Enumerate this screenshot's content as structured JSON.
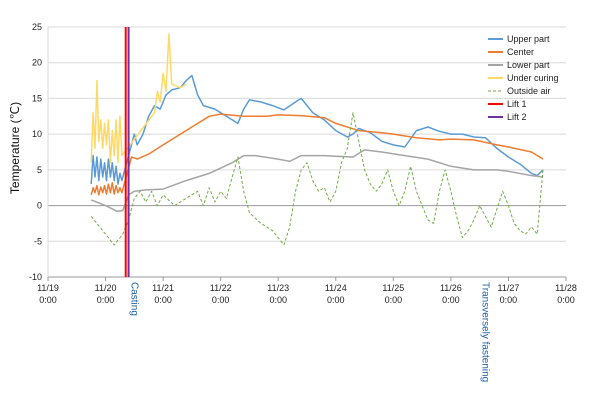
{
  "chart_data": {
    "type": "line",
    "title": "",
    "xlabel": "",
    "ylabel": "Temperature (℃)",
    "x_range": [
      "11/19 0:00",
      "11/28 0:00"
    ],
    "ylim": [
      -10,
      25
    ],
    "y_ticks": [
      -10,
      -5,
      0,
      5,
      10,
      15,
      20,
      25
    ],
    "x_ticks": [
      {
        "x": "11/19 0:00",
        "date": "11/19",
        "time": "0:00"
      },
      {
        "x": "11/20 0:00",
        "date": "11/20",
        "time": "0:00"
      },
      {
        "x": "11/21 0:00",
        "date": "11/21",
        "time": "0:00"
      },
      {
        "x": "11/22 0:00",
        "date": "11/22",
        "time": "0:00"
      },
      {
        "x": "11/23 0:00",
        "date": "11/23",
        "time": "0:00"
      },
      {
        "x": "11/24 0:00",
        "date": "11/24",
        "time": "0:00"
      },
      {
        "x": "11/25 0:00",
        "date": "11/25",
        "time": "0:00"
      },
      {
        "x": "11/26 0:00",
        "date": "11/26",
        "time": "0:00"
      },
      {
        "x": "11/27 0:00",
        "date": "11/27",
        "time": "0:00"
      },
      {
        "x": "11/28 0:00",
        "date": "11/28",
        "time": "0:00"
      }
    ],
    "grid": {
      "horizontal": true,
      "vertical": false
    },
    "legend_position": "top-right",
    "series": [
      {
        "name": "Upper part",
        "color": "#5b9bd5",
        "style": "solid",
        "points": [
          [
            "11/19 18:00",
            3.0
          ],
          [
            "11/19 18:48",
            7.0
          ],
          [
            "11/19 19:36",
            4.0
          ],
          [
            "11/19 20:24",
            6.8
          ],
          [
            "11/19 21:12",
            3.5
          ],
          [
            "11/19 22:00",
            6.5
          ],
          [
            "11/19 22:48",
            4.0
          ],
          [
            "11/19 23:36",
            6.0
          ],
          [
            "11/20 0:24",
            3.5
          ],
          [
            "11/20 1:12",
            6.5
          ],
          [
            "11/20 2:00",
            4.0
          ],
          [
            "11/20 2:48",
            6.0
          ],
          [
            "11/20 3:36",
            3.5
          ],
          [
            "11/20 4:24",
            5.5
          ],
          [
            "11/20 5:12",
            3.0
          ],
          [
            "11/20 6:00",
            4.5
          ],
          [
            "11/20 6:48",
            3.5
          ],
          [
            "11/20 12:00",
            10.0
          ],
          [
            "11/20 13:12",
            8.5
          ],
          [
            "11/20 15:36",
            10.0
          ],
          [
            "11/20 18:00",
            12.5
          ],
          [
            "11/20 20:24",
            14.0
          ],
          [
            "11/20 22:48",
            13.5
          ],
          [
            "11/21 1:12",
            15.5
          ],
          [
            "11/21 3:36",
            16.2
          ],
          [
            "11/21 7:12",
            16.5
          ],
          [
            "11/21 9:36",
            17.5
          ],
          [
            "11/21 12:00",
            18.2
          ],
          [
            "11/21 14:24",
            15.5
          ],
          [
            "11/21 16:48",
            14.0
          ],
          [
            "11/21 21:36",
            13.5
          ],
          [
            "11/22 2:24",
            12.5
          ],
          [
            "11/22 7:12",
            11.5
          ],
          [
            "11/22 9:36",
            13.5
          ],
          [
            "11/22 12:00",
            14.8
          ],
          [
            "11/22 16:48",
            14.5
          ],
          [
            "11/22 21:36",
            14.0
          ],
          [
            "11/23 2:24",
            13.4
          ],
          [
            "11/23 7:12",
            14.5
          ],
          [
            "11/23 9:36",
            15.0
          ],
          [
            "11/23 14:24",
            13.0
          ],
          [
            "11/23 19:12",
            12.0
          ],
          [
            "11/24 0:00",
            10.5
          ],
          [
            "11/24 4:48",
            9.6
          ],
          [
            "11/24 7:12",
            10.0
          ],
          [
            "11/24 9:36",
            10.8
          ],
          [
            "11/24 14:24",
            10.2
          ],
          [
            "11/24 19:12",
            9.0
          ],
          [
            "11/25 0:00",
            8.5
          ],
          [
            "11/25 4:48",
            8.2
          ],
          [
            "11/25 9:36",
            10.5
          ],
          [
            "11/25 14:24",
            11.0
          ],
          [
            "11/25 19:12",
            10.4
          ],
          [
            "11/26 0:00",
            10.0
          ],
          [
            "11/26 4:48",
            10.0
          ],
          [
            "11/26 9:36",
            9.6
          ],
          [
            "11/26 14:24",
            9.5
          ],
          [
            "11/26 19:12",
            8.0
          ],
          [
            "11/27 0:00",
            6.8
          ],
          [
            "11/27 4:48",
            5.8
          ],
          [
            "11/27 9:36",
            4.5
          ],
          [
            "11/27 12:00",
            4.2
          ],
          [
            "11/27 14:24",
            5.0
          ]
        ]
      },
      {
        "name": "Center",
        "color": "#ed7d31",
        "style": "solid",
        "points": [
          [
            "11/19 18:00",
            1.5
          ],
          [
            "11/19 18:48",
            2.5
          ],
          [
            "11/19 19:36",
            1.8
          ],
          [
            "11/19 20:24",
            2.8
          ],
          [
            "11/19 21:12",
            1.5
          ],
          [
            "11/19 22:00",
            2.6
          ],
          [
            "11/19 22:48",
            1.8
          ],
          [
            "11/19 23:36",
            2.8
          ],
          [
            "11/20 0:24",
            1.6
          ],
          [
            "11/20 1:12",
            3.0
          ],
          [
            "11/20 2:00",
            1.8
          ],
          [
            "11/20 2:48",
            3.2
          ],
          [
            "11/20 3:36",
            1.6
          ],
          [
            "11/20 4:24",
            2.8
          ],
          [
            "11/20 5:12",
            1.8
          ],
          [
            "11/20 6:00",
            2.5
          ],
          [
            "11/20 6:48",
            1.8
          ],
          [
            "11/20 10:48",
            6.8
          ],
          [
            "11/20 13:12",
            6.5
          ],
          [
            "11/20 18:00",
            7.2
          ],
          [
            "11/21 0:00",
            8.5
          ],
          [
            "11/21 9:36",
            10.5
          ],
          [
            "11/21 19:12",
            12.5
          ],
          [
            "11/22 0:00",
            12.8
          ],
          [
            "11/22 9:36",
            12.5
          ],
          [
            "11/22 19:12",
            12.5
          ],
          [
            "11/23 0:00",
            12.7
          ],
          [
            "11/23 9:36",
            12.6
          ],
          [
            "11/23 19:12",
            12.3
          ],
          [
            "11/24 0:00",
            11.5
          ],
          [
            "11/24 9:36",
            10.5
          ],
          [
            "11/24 19:12",
            10.2
          ],
          [
            "11/25 0:00",
            10.0
          ],
          [
            "11/25 9:36",
            9.5
          ],
          [
            "11/25 19:12",
            9.2
          ],
          [
            "11/26 0:00",
            9.3
          ],
          [
            "11/26 9:36",
            9.2
          ],
          [
            "11/26 19:12",
            8.5
          ],
          [
            "11/27 0:00",
            8.2
          ],
          [
            "11/27 9:36",
            7.5
          ],
          [
            "11/27 14:24",
            6.5
          ]
        ]
      },
      {
        "name": "Lower part",
        "color": "#a5a5a5",
        "style": "solid",
        "points": [
          [
            "11/19 18:00",
            0.8
          ],
          [
            "11/20 0:00",
            0.0
          ],
          [
            "11/20 4:48",
            -0.8
          ],
          [
            "11/20 7:12",
            -0.7
          ],
          [
            "11/20 9:36",
            1.5
          ],
          [
            "11/20 12:00",
            2.0
          ],
          [
            "11/20 16:48",
            2.2
          ],
          [
            "11/21 0:00",
            2.3
          ],
          [
            "11/21 9:36",
            3.5
          ],
          [
            "11/21 19:12",
            4.5
          ],
          [
            "11/22 4:48",
            6.0
          ],
          [
            "11/22 9:36",
            7.0
          ],
          [
            "11/22 14:24",
            7.0
          ],
          [
            "11/23 0:00",
            6.5
          ],
          [
            "11/23 4:48",
            6.2
          ],
          [
            "11/23 9:36",
            7.0
          ],
          [
            "11/23 19:12",
            7.0
          ],
          [
            "11/24 0:00",
            6.9
          ],
          [
            "11/24 7:12",
            6.8
          ],
          [
            "11/24 12:00",
            7.8
          ],
          [
            "11/24 19:12",
            7.5
          ],
          [
            "11/25 4:48",
            7.0
          ],
          [
            "11/25 14:24",
            6.5
          ],
          [
            "11/26 0:00",
            5.5
          ],
          [
            "11/26 9:36",
            5.0
          ],
          [
            "11/26 19:12",
            5.0
          ],
          [
            "11/27 0:00",
            4.8
          ],
          [
            "11/27 9:36",
            4.2
          ],
          [
            "11/27 14:24",
            4.0
          ]
        ]
      },
      {
        "name": "Under curing",
        "color": "#ffd966",
        "style": "solid",
        "points": [
          [
            "11/19 18:00",
            6.0
          ],
          [
            "11/19 18:48",
            13.0
          ],
          [
            "11/19 19:36",
            8.0
          ],
          [
            "11/19 20:24",
            17.5
          ],
          [
            "11/19 21:12",
            9.0
          ],
          [
            "11/19 22:00",
            12.0
          ],
          [
            "11/19 22:48",
            8.0
          ],
          [
            "11/19 23:36",
            11.5
          ],
          [
            "11/20 0:24",
            8.5
          ],
          [
            "11/20 1:12",
            12.0
          ],
          [
            "11/20 2:00",
            6.0
          ],
          [
            "11/20 2:48",
            10.5
          ],
          [
            "11/20 3:36",
            7.0
          ],
          [
            "11/20 4:24",
            12.0
          ],
          [
            "11/20 5:12",
            6.0
          ],
          [
            "11/20 6:00",
            12.5
          ],
          [
            "11/20 6:48",
            7.0
          ],
          [
            "11/20 20:24",
            13.0
          ],
          [
            "11/20 21:36",
            16.0
          ],
          [
            "11/20 22:48",
            14.5
          ],
          [
            "11/21 0:00",
            18.5
          ],
          [
            "11/21 1:12",
            16.0
          ],
          [
            "11/21 2:24",
            24.0
          ],
          [
            "11/21 3:36",
            17.0
          ],
          [
            "11/21 7:12",
            16.5
          ],
          [
            "11/21 9:36",
            17.0
          ]
        ]
      },
      {
        "name": "Outside air",
        "color": "#70ad47",
        "style": "dashed",
        "points": [
          [
            "11/19 18:00",
            -1.5
          ],
          [
            "11/19 21:36",
            -3.0
          ],
          [
            "11/20 1:12",
            -4.5
          ],
          [
            "11/20 3:36",
            -5.5
          ],
          [
            "11/20 7:12",
            -4.0
          ],
          [
            "11/20 9:36",
            -2.0
          ],
          [
            "11/20 12:00",
            1.0
          ],
          [
            "11/20 14:24",
            2.0
          ],
          [
            "11/20 16:48",
            0.5
          ],
          [
            "11/20 19:12",
            2.0
          ],
          [
            "11/20 21:36",
            0.0
          ],
          [
            "11/21 0:00",
            1.5
          ],
          [
            "11/21 4:48",
            0.0
          ],
          [
            "11/21 9:36",
            1.0
          ],
          [
            "11/21 14:24",
            2.0
          ],
          [
            "11/21 16:48",
            0.0
          ],
          [
            "11/21 19:12",
            2.5
          ],
          [
            "11/21 21:36",
            0.5
          ],
          [
            "11/22 0:00",
            2.0
          ],
          [
            "11/22 2:24",
            1.0
          ],
          [
            "11/22 4:48",
            4.0
          ],
          [
            "11/22 7:12",
            6.8
          ],
          [
            "11/22 9:36",
            2.0
          ],
          [
            "11/22 12:00",
            -1.0
          ],
          [
            "11/22 16:48",
            -2.5
          ],
          [
            "11/22 21:36",
            -3.5
          ],
          [
            "11/23 2:24",
            -5.5
          ],
          [
            "11/23 4:48",
            -3.0
          ],
          [
            "11/23 7:12",
            2.0
          ],
          [
            "11/23 9:36",
            5.0
          ],
          [
            "11/23 12:00",
            6.0
          ],
          [
            "11/23 14:24",
            3.5
          ],
          [
            "11/23 16:48",
            2.0
          ],
          [
            "11/23 19:12",
            2.5
          ],
          [
            "11/23 21:36",
            0.5
          ],
          [
            "11/24 0:00",
            2.0
          ],
          [
            "11/24 2:24",
            6.0
          ],
          [
            "11/24 4:48",
            8.0
          ],
          [
            "11/24 7:12",
            13.0
          ],
          [
            "11/24 9:36",
            9.0
          ],
          [
            "11/24 12:00",
            5.0
          ],
          [
            "11/24 14:24",
            3.0
          ],
          [
            "11/24 16:48",
            2.0
          ],
          [
            "11/24 19:12",
            3.0
          ],
          [
            "11/24 21:36",
            5.0
          ],
          [
            "11/25 0:00",
            2.0
          ],
          [
            "11/25 2:24",
            0.0
          ],
          [
            "11/25 4:48",
            2.0
          ],
          [
            "11/25 7:12",
            5.5
          ],
          [
            "11/25 9:36",
            2.0
          ],
          [
            "11/25 12:00",
            0.0
          ],
          [
            "11/25 14:24",
            -2.0
          ],
          [
            "11/25 16:48",
            -2.5
          ],
          [
            "11/25 19:12",
            2.0
          ],
          [
            "11/25 21:36",
            5.0
          ],
          [
            "11/26 0:00",
            2.0
          ],
          [
            "11/26 2:24",
            -1.5
          ],
          [
            "11/26 4:48",
            -4.5
          ],
          [
            "11/26 7:12",
            -3.5
          ],
          [
            "11/26 9:36",
            -2.0
          ],
          [
            "11/26 12:00",
            0.0
          ],
          [
            "11/26 14:24",
            -1.5
          ],
          [
            "11/26 16:48",
            -3.0
          ],
          [
            "11/26 19:12",
            -0.5
          ],
          [
            "11/26 21:36",
            2.0
          ],
          [
            "11/27 0:00",
            0.0
          ],
          [
            "11/27 2:24",
            -2.5
          ],
          [
            "11/27 4:48",
            -3.5
          ],
          [
            "11/27 7:12",
            -4.0
          ],
          [
            "11/27 9:36",
            -3.0
          ],
          [
            "11/27 12:00",
            -4.0
          ],
          [
            "11/27 14:24",
            5.0
          ]
        ]
      },
      {
        "name": "Lift 1",
        "color": "#ff0000",
        "style": "solid",
        "x": "11/20 8:24"
      },
      {
        "name": "Lift 2",
        "color": "#7030a0",
        "style": "solid",
        "x": "11/20 9:36"
      }
    ],
    "annotations": [
      {
        "text": "Casting",
        "x": "11/20 9:36",
        "color": "#1f5fa8",
        "orientation": "vertical"
      },
      {
        "text": "Transversely fastening",
        "x": "11/26 12:00",
        "color": "#1f5fa8",
        "orientation": "vertical"
      }
    ]
  }
}
